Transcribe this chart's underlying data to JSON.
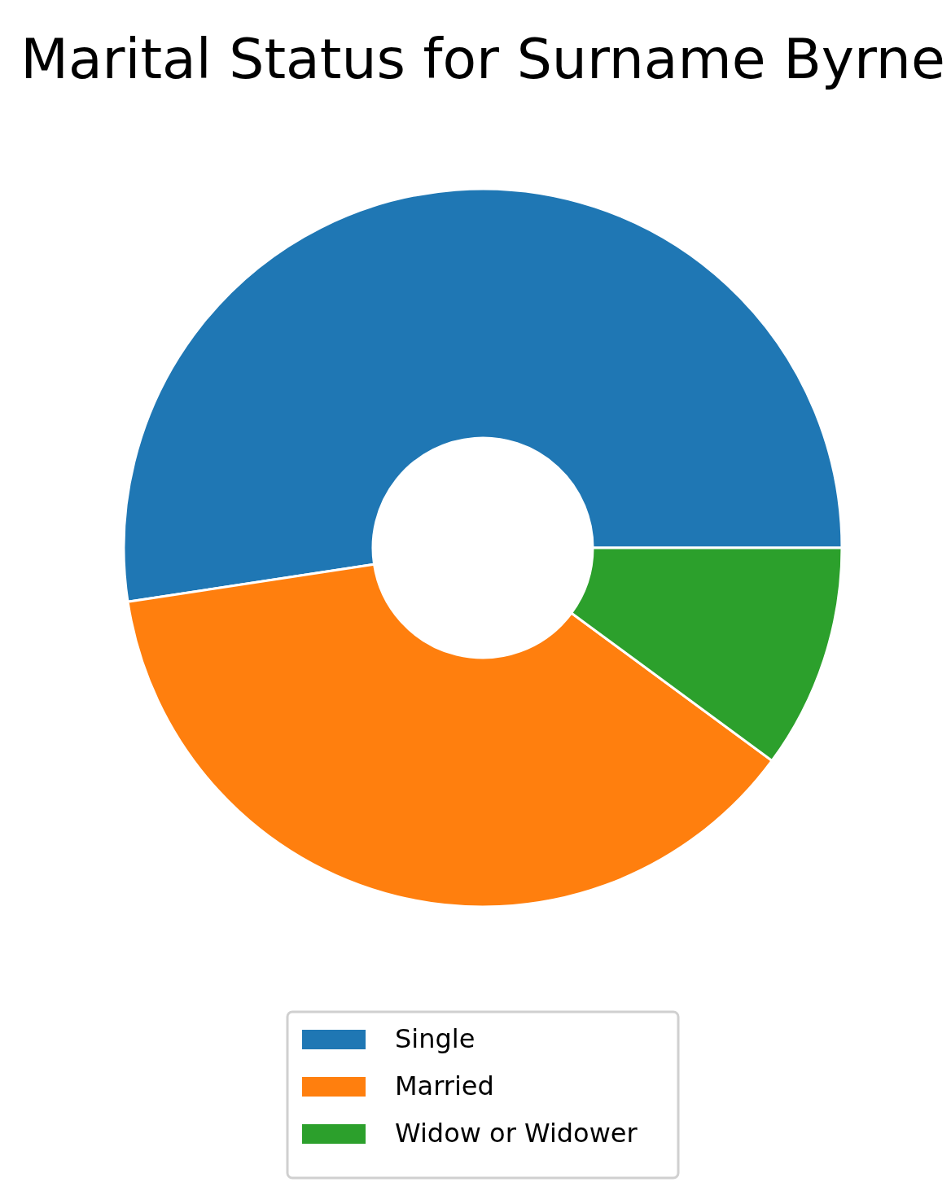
{
  "chart_data": {
    "type": "donut",
    "title": "Marital Status for Surname Byrne",
    "categories": [
      "Single",
      "Married",
      "Widow or Widower"
    ],
    "values": [
      52.4,
      37.5,
      10.1
    ],
    "colors": [
      "#1f77b4",
      "#ff7f0e",
      "#2ca02c"
    ],
    "legend": "bottom"
  }
}
